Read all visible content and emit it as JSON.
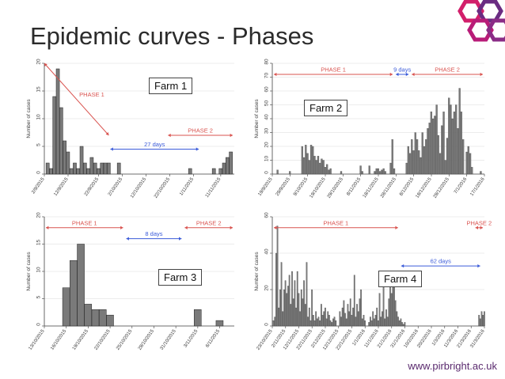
{
  "slide": {
    "title": "Epidemic curves - Phases",
    "footer_url": "www.pirbright.ac.uk",
    "logo_colors": [
      "#d21f6b",
      "#6a2c82",
      "#b81c78",
      "#8a2c86"
    ]
  },
  "colors": {
    "bar": "#7a7a7a",
    "bar_outline": "#222222",
    "phase1": "#d9534f",
    "interval": "#3b5bd9"
  },
  "chart_data": [
    {
      "type": "bar",
      "panel_label": "Farm 1",
      "ylabel": "Number of cases",
      "ylim": [
        0,
        20
      ],
      "yticks": [
        0,
        5,
        10,
        15,
        20
      ],
      "x_range": [
        0,
        56
      ],
      "xtick_labels": [
        "2/9/2015",
        "12/9/2015",
        "22/9/2015",
        "2/10/2015",
        "12/10/2015",
        "22/10/2015",
        "1/11/2015",
        "11/11/2015"
      ],
      "xtick_pos": [
        0,
        7,
        16,
        23,
        30,
        37,
        44,
        52
      ],
      "x": [
        1,
        2,
        3,
        4,
        5,
        6,
        7,
        8,
        9,
        10,
        11,
        12,
        13,
        14,
        15,
        16,
        17,
        18,
        19,
        22,
        43,
        50,
        52,
        53,
        54,
        55
      ],
      "values": [
        2,
        1,
        14,
        19,
        12,
        6,
        4,
        1,
        2,
        1,
        5,
        2,
        1,
        3,
        2,
        1,
        2,
        2,
        2,
        2,
        1,
        1,
        1,
        2,
        3,
        4
      ],
      "phases": [
        {
          "label": "PHASE 1",
          "x0": 0,
          "x1": 19,
          "style": "diagonal",
          "y0": 20,
          "y1": 7,
          "label_x": 14,
          "label_y": 14
        },
        {
          "label": "PHASE 2",
          "x0": 36,
          "x1": 56,
          "style": "horizontal",
          "y": 7
        }
      ],
      "intervals": [
        {
          "label": "27 days",
          "x0": 19,
          "x1": 46,
          "y": 4.5
        }
      ]
    },
    {
      "type": "bar",
      "panel_label": "Farm 2",
      "ylabel": "Number of cases",
      "ylim": [
        0,
        80
      ],
      "yticks": [
        0,
        10,
        20,
        30,
        40,
        50,
        60,
        70,
        80
      ],
      "x_range": [
        0,
        120
      ],
      "xtick_labels": [
        "19/9/2015",
        "29/9/2015",
        "9/10/2015",
        "19/10/2015",
        "29/10/2015",
        "8/11/2015",
        "18/11/2015",
        "28/11/2015",
        "8/12/2015",
        "18/12/2015",
        "28/12/2015",
        "7/1/2016",
        "17/1/2016"
      ],
      "xtick_pos": [
        0,
        10,
        20,
        30,
        40,
        50,
        60,
        70,
        80,
        90,
        100,
        110,
        120
      ],
      "x": [
        3,
        10,
        17,
        18,
        19,
        20,
        21,
        22,
        23,
        24,
        25,
        26,
        27,
        28,
        29,
        30,
        31,
        32,
        33,
        39,
        50,
        51,
        55,
        58,
        59,
        60,
        61,
        62,
        63,
        64,
        67,
        68,
        69,
        76,
        77,
        78,
        79,
        80,
        81,
        82,
        83,
        84,
        85,
        86,
        87,
        88,
        89,
        90,
        91,
        92,
        93,
        94,
        95,
        96,
        97,
        98,
        99,
        100,
        101,
        102,
        103,
        104,
        105,
        106,
        107,
        108,
        110,
        111,
        112,
        113,
        118
      ],
      "values": [
        3,
        2,
        20,
        12,
        21,
        15,
        10,
        21,
        20,
        13,
        10,
        13,
        8,
        11,
        10,
        5,
        7,
        3,
        4,
        2,
        6,
        2,
        6,
        2,
        4,
        4,
        2,
        3,
        4,
        2,
        8,
        25,
        4,
        8,
        20,
        15,
        25,
        17,
        30,
        25,
        17,
        12,
        30,
        20,
        25,
        33,
        37,
        45,
        40,
        42,
        50,
        28,
        15,
        35,
        45,
        10,
        26,
        55,
        50,
        40,
        45,
        50,
        33,
        62,
        45,
        25,
        16,
        20,
        15,
        5,
        2
      ],
      "phases": [
        {
          "label": "PHASE 1",
          "x0": 0,
          "x1": 69,
          "style": "horizontal",
          "y": 72
        },
        {
          "label": "PHASE 2",
          "x0": 78,
          "x1": 120,
          "style": "horizontal",
          "y": 72
        }
      ],
      "intervals": [
        {
          "label": "9 days",
          "x0": 69,
          "x1": 78,
          "y": 72
        }
      ]
    },
    {
      "type": "bar",
      "panel_label": "Farm 3",
      "ylabel": "Number of cases",
      "ylim": [
        0,
        20
      ],
      "yticks": [
        0,
        5,
        10,
        15,
        20
      ],
      "x_range": [
        0,
        26
      ],
      "xtick_labels": [
        "13/10/2015",
        "16/10/2015",
        "19/10/2015",
        "22/10/2015",
        "25/10/2015",
        "28/10/2015",
        "31/10/2015",
        "3/11/2015",
        "6/11/2015"
      ],
      "xtick_pos": [
        0,
        3,
        6,
        9,
        12,
        15,
        18,
        21,
        24
      ],
      "x": [
        3,
        4,
        5,
        6,
        7,
        8,
        9,
        21,
        24
      ],
      "values": [
        7,
        12,
        15,
        4,
        3,
        3,
        2,
        3,
        1
      ],
      "phases": [
        {
          "label": "PHASE 1",
          "x0": 0,
          "x1": 11,
          "style": "horizontal",
          "y": 18
        },
        {
          "label": "PHASE 2",
          "x0": 19,
          "x1": 26,
          "style": "horizontal",
          "y": 18
        }
      ],
      "intervals": [
        {
          "label": "8 days",
          "x0": 11,
          "x1": 19,
          "y": 16
        }
      ]
    },
    {
      "type": "bar",
      "panel_label": "Farm 4",
      "ylabel": "Number of cases",
      "ylim": [
        0,
        60
      ],
      "yticks": [
        0,
        20,
        40,
        60
      ],
      "x_range": [
        0,
        160
      ],
      "xtick_labels": [
        "23/10/2015",
        "2/11/2015",
        "12/11/2015",
        "22/11/2015",
        "2/12/2015",
        "12/12/2015",
        "22/12/2015",
        "1/1/2016",
        "11/1/2016",
        "21/1/2016",
        "31/1/2016",
        "10/2/2016",
        "20/2/2016",
        "1/3/2016",
        "11/3/2016",
        "21/3/2016",
        "31/3/2016"
      ],
      "xtick_pos": [
        0,
        10,
        20,
        30,
        40,
        50,
        60,
        70,
        80,
        90,
        100,
        110,
        120,
        130,
        140,
        150,
        160
      ],
      "x": [
        1,
        2,
        3,
        4,
        5,
        6,
        7,
        8,
        9,
        10,
        11,
        12,
        13,
        14,
        15,
        16,
        17,
        18,
        19,
        20,
        21,
        22,
        23,
        24,
        25,
        26,
        27,
        28,
        29,
        30,
        31,
        32,
        33,
        34,
        35,
        36,
        37,
        38,
        39,
        40,
        41,
        42,
        43,
        44,
        45,
        46,
        47,
        48,
        51,
        52,
        53,
        54,
        55,
        56,
        57,
        58,
        59,
        60,
        61,
        62,
        63,
        64,
        65,
        66,
        67,
        68,
        69,
        70,
        73,
        74,
        75,
        76,
        77,
        78,
        79,
        80,
        81,
        82,
        83,
        84,
        85,
        86,
        87,
        88,
        89,
        90,
        91,
        92,
        93,
        94,
        95,
        96,
        97,
        98,
        99,
        100,
        156,
        157,
        158,
        159,
        160
      ],
      "values": [
        3,
        5,
        40,
        55,
        10,
        20,
        35,
        8,
        20,
        25,
        18,
        22,
        28,
        12,
        30,
        15,
        25,
        10,
        30,
        18,
        8,
        20,
        15,
        25,
        12,
        35,
        5,
        10,
        3,
        20,
        6,
        3,
        8,
        4,
        5,
        3,
        12,
        6,
        8,
        10,
        4,
        8,
        6,
        3,
        2,
        4,
        5,
        3,
        8,
        5,
        10,
        14,
        7,
        4,
        12,
        8,
        15,
        6,
        10,
        28,
        5,
        12,
        8,
        15,
        20,
        4,
        6,
        3,
        2,
        5,
        3,
        8,
        4,
        6,
        10,
        3,
        18,
        5,
        8,
        22,
        4,
        9,
        5,
        15,
        25,
        18,
        22,
        25,
        14,
        8,
        5,
        3,
        4,
        2,
        1,
        2,
        6,
        4,
        8,
        6,
        8
      ],
      "phases": [
        {
          "label": "PHASE 1",
          "x0": 0,
          "x1": 96,
          "style": "horizontal",
          "y": 54
        },
        {
          "label": "PHASE 2",
          "x0": 152,
          "x1": 160,
          "style": "horizontal",
          "y": 54
        }
      ],
      "intervals": [
        {
          "label": "62 days",
          "x0": 96,
          "x1": 158,
          "y": 33
        }
      ]
    }
  ]
}
